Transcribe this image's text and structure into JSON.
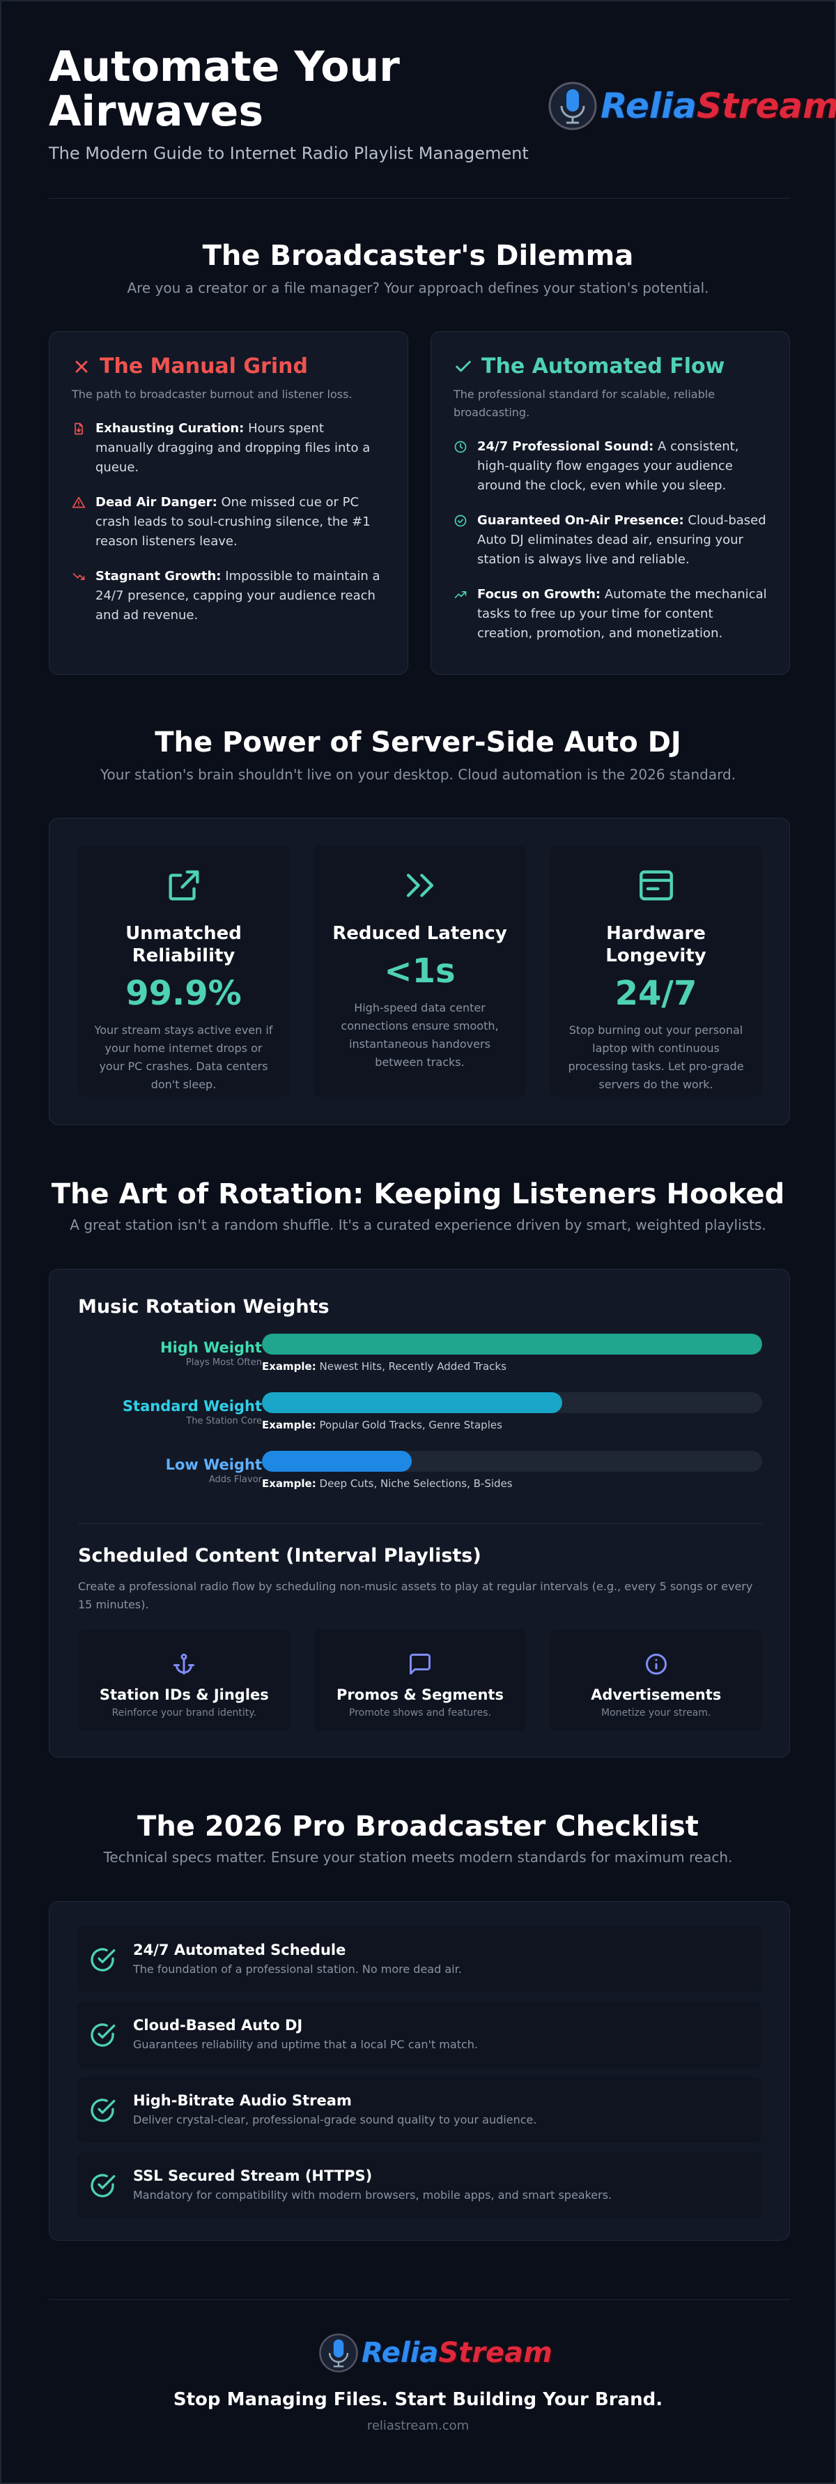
{
  "header": {
    "title": "Automate Your Airwaves",
    "subtitle": "The Modern Guide to Internet Radio Playlist Management",
    "logo": {
      "part1": "Relia",
      "part2": "Stream"
    }
  },
  "dilemma": {
    "title": "The Broadcaster's Dilemma",
    "subtitle": "Are you a creator or a file manager? Your approach defines your station's potential.",
    "cards": [
      {
        "title": "The Manual Grind",
        "description": "The path to broadcaster burnout and listener loss.",
        "items": [
          {
            "label": "Exhausting Curation:",
            "text": "Hours spent manually dragging and dropping files into a queue."
          },
          {
            "label": "Dead Air Danger:",
            "text": "One missed cue or PC crash leads to soul-crushing silence, the #1 reason listeners leave."
          },
          {
            "label": "Stagnant Growth:",
            "text": "Impossible to maintain a 24/7 presence, capping your audience reach and ad revenue."
          }
        ]
      },
      {
        "title": "The Automated Flow",
        "description": "The professional standard for scalable, reliable broadcasting.",
        "items": [
          {
            "label": "24/7 Professional Sound:",
            "text": "A consistent, high-quality flow engages your audience around the clock, even while you sleep."
          },
          {
            "label": "Guaranteed On-Air Presence:",
            "text": "Cloud-based Auto DJ eliminates dead air, ensuring your station is always live and reliable."
          },
          {
            "label": "Focus on Growth:",
            "text": "Automate the mechanical tasks to free up your time for content creation, promotion, and monetization."
          }
        ]
      }
    ]
  },
  "power": {
    "title": "The Power of Server-Side Auto DJ",
    "subtitle": "Your station's brain shouldn't live on your desktop. Cloud automation is the 2026 standard.",
    "stats": [
      {
        "title": "Unmatched Reliability",
        "value": "99.9%",
        "description": "Your stream stays active even if your home internet drops or your PC crashes. Data centers don't sleep."
      },
      {
        "title": "Reduced Latency",
        "value": "<1s",
        "description": "High-speed data center connections ensure smooth, instantaneous handovers between tracks."
      },
      {
        "title": "Hardware Longevity",
        "value": "24/7",
        "description": "Stop burning out your personal laptop with continuous processing tasks. Let pro-grade servers do the work."
      }
    ]
  },
  "rotation": {
    "title": "The Art of Rotation: Keeping Listeners Hooked",
    "subtitle": "A great station isn't a random shuffle. It's a curated experience driven by smart, weighted playlists.",
    "weights_title": "Music Rotation Weights",
    "weights": [
      {
        "name": "High Weight",
        "sublabel": "Plays Most Often",
        "example_label": "Example:",
        "example": "Newest Hits, Recently Added Tracks",
        "weight": 100
      },
      {
        "name": "Standard Weight",
        "sublabel": "The Station Core",
        "example_label": "Example:",
        "example": "Popular Gold Tracks, Genre Staples",
        "weight": 60
      },
      {
        "name": "Low Weight",
        "sublabel": "Adds Flavor",
        "example_label": "Example:",
        "example": "Deep Cuts, Niche Selections, B-Sides",
        "weight": 30
      }
    ],
    "scheduled_title": "Scheduled Content (Interval Playlists)",
    "scheduled_description": "Create a professional radio flow by scheduling non-music assets to play at regular intervals (e.g., every 5 songs or every 15 minutes).",
    "scheduled": [
      {
        "title": "Station IDs & Jingles",
        "description": "Reinforce your brand identity."
      },
      {
        "title": "Promos & Segments",
        "description": "Promote shows and features."
      },
      {
        "title": "Advertisements",
        "description": "Monetize your stream."
      }
    ]
  },
  "checklist": {
    "title": "The 2026 Pro Broadcaster Checklist",
    "subtitle": "Technical specs matter. Ensure your station meets modern standards for maximum reach.",
    "items": [
      {
        "title": "24/7 Automated Schedule",
        "description": "The foundation of a professional station. No more dead air."
      },
      {
        "title": "Cloud-Based Auto DJ",
        "description": "Guarantees reliability and uptime that a local PC can't match."
      },
      {
        "title": "High-Bitrate Audio Stream",
        "description": "Deliver crystal-clear, professional-grade sound quality to your audience."
      },
      {
        "title": "SSL Secured Stream (HTTPS)",
        "description": "Mandatory for compatibility with modern browsers, mobile apps, and smart speakers."
      }
    ]
  },
  "footer": {
    "logo": {
      "part1": "Relia",
      "part2": "Stream"
    },
    "tagline": "Stop Managing Files. Start Building Your Brand.",
    "url": "reliastream.com"
  }
}
